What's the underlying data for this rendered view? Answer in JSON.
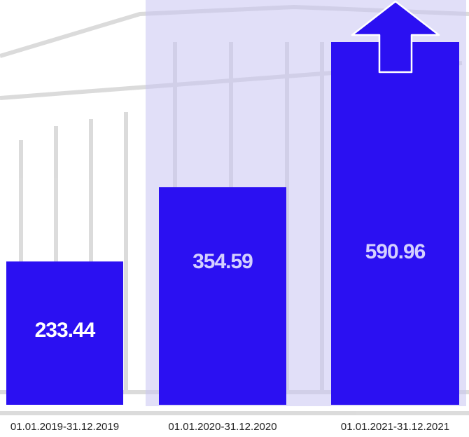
{
  "chart_data": {
    "type": "bar",
    "categories": [
      "01.01.2019-31.12.2019",
      "01.01.2020-31.12.2020",
      "01.01.2021-31.12.2021"
    ],
    "values": [
      233.44,
      354.59,
      590.96
    ],
    "color": "#2b10f2"
  }
}
